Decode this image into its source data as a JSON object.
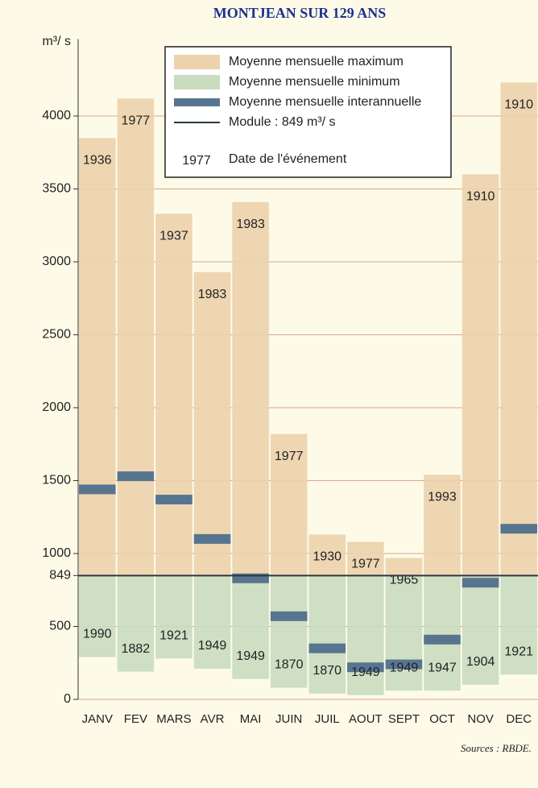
{
  "chart_data": {
    "type": "range-bar",
    "title": "MONTJEAN SUR 129 ANS",
    "y_unit": "m³/ s",
    "categories": [
      "JANV",
      "FEV",
      "MARS",
      "AVR",
      "MAI",
      "JUIN",
      "JUIL",
      "AOUT",
      "SEPT",
      "OCT",
      "NOV",
      "DEC"
    ],
    "series": [
      {
        "name": "Moyenne mensuelle maximum",
        "color": "#ecd2ad",
        "values": [
          3850,
          4120,
          3330,
          2930,
          3410,
          1820,
          1130,
          1080,
          970,
          1540,
          3600,
          4230
        ],
        "years": [
          "1936",
          "1977",
          "1937",
          "1983",
          "1983",
          "1977",
          "1930",
          "1977",
          "1965",
          "1993",
          "1910",
          "1910"
        ]
      },
      {
        "name": "Moyenne mensuelle minimum",
        "color": "#c9dcc0",
        "values": [
          290,
          190,
          280,
          210,
          140,
          80,
          40,
          30,
          60,
          60,
          100,
          170
        ],
        "years": [
          "1990",
          "1882",
          "1921",
          "1949",
          "1949",
          "1870",
          "1870",
          "1949",
          "1949",
          "1947",
          "1904",
          "1921"
        ]
      },
      {
        "name": "Moyenne mensuelle interannuelle",
        "color": "#587590",
        "values": [
          1440,
          1530,
          1370,
          1100,
          830,
          570,
          350,
          220,
          240,
          410,
          800,
          1170
        ]
      }
    ],
    "module": {
      "value": 849,
      "label": "Module : 849 m³/ s",
      "color": "#2a3a40"
    },
    "date_legend": {
      "sample": "1977",
      "label": "Date de l'événement"
    },
    "ylim": [
      0,
      4500
    ],
    "yticks": [
      0,
      500,
      849,
      1000,
      1500,
      2000,
      2500,
      3000,
      3500,
      4000
    ],
    "grid": true,
    "source": "Sources : RBDE."
  }
}
